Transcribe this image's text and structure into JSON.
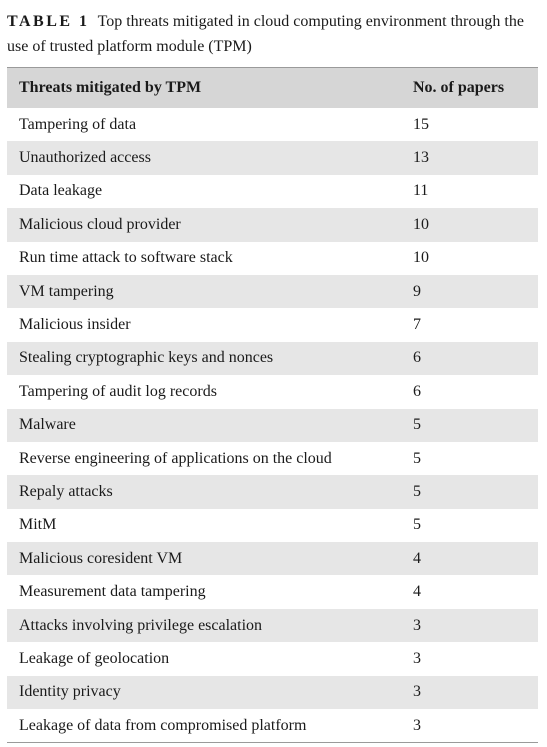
{
  "caption": {
    "label": "TABLE 1",
    "text": "Top threats mitigated in cloud computing environment through the use of trusted platform module (TPM)"
  },
  "table": {
    "headers": [
      "Threats mitigated by TPM",
      "No. of papers"
    ],
    "rows": [
      [
        "Tampering of data",
        "15"
      ],
      [
        "Unauthorized access",
        "13"
      ],
      [
        "Data leakage",
        "11"
      ],
      [
        "Malicious cloud provider",
        "10"
      ],
      [
        "Run time attack to software stack",
        "10"
      ],
      [
        "VM tampering",
        "9"
      ],
      [
        "Malicious insider",
        "7"
      ],
      [
        "Stealing cryptographic keys and nonces",
        "6"
      ],
      [
        "Tampering of audit log records",
        "6"
      ],
      [
        "Malware",
        "5"
      ],
      [
        "Reverse engineering of applications on the cloud",
        "5"
      ],
      [
        "Repaly attacks",
        "5"
      ],
      [
        "MitM",
        "5"
      ],
      [
        "Malicious coresident VM",
        "4"
      ],
      [
        "Measurement data tampering",
        "4"
      ],
      [
        "Attacks involving privilege escalation",
        "3"
      ],
      [
        "Leakage of geolocation",
        "3"
      ],
      [
        "Identity privacy",
        "3"
      ],
      [
        "Leakage of data from compromised platform",
        "3"
      ]
    ]
  }
}
